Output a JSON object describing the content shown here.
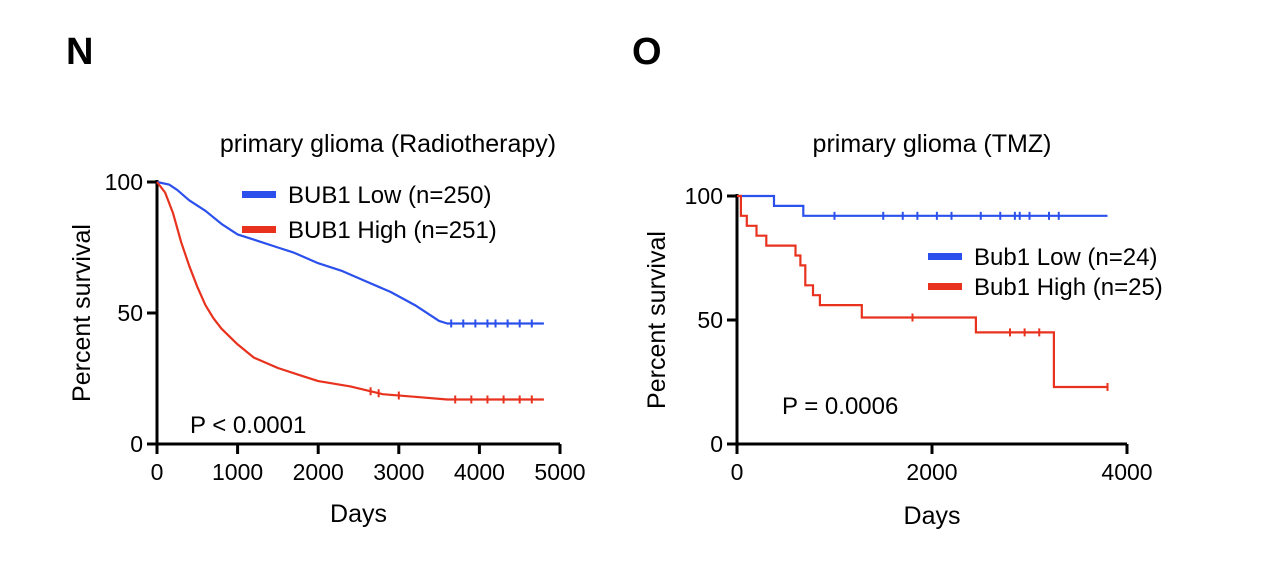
{
  "chart_data": [
    {
      "panel": "N",
      "type": "line",
      "title": "primary glioma (Radiotherapy)",
      "xlabel": "Days",
      "ylabel": "Percent survival",
      "xlim": [
        0,
        5000
      ],
      "ylim": [
        0,
        100
      ],
      "xticks": [
        0,
        1000,
        2000,
        3000,
        4000,
        5000
      ],
      "yticks": [
        0,
        50,
        100
      ],
      "annotation": "P < 0.0001",
      "legend_position": "top-right",
      "series": [
        {
          "name": "BUB1 Low (n=250)",
          "color": "#2b50ec",
          "x": [
            0,
            150,
            250,
            400,
            600,
            800,
            1000,
            1200,
            1500,
            1700,
            2000,
            2300,
            2600,
            2900,
            3200,
            3500,
            3600,
            4000,
            4500,
            4800
          ],
          "y": [
            100,
            99,
            97,
            93,
            89,
            84,
            80,
            78,
            75,
            73,
            69,
            66,
            62,
            58,
            53,
            47,
            46,
            46,
            46,
            46
          ]
        },
        {
          "name": "BUB1 High (n=251)",
          "color": "#e8321e",
          "x": [
            0,
            100,
            200,
            300,
            400,
            500,
            600,
            700,
            800,
            1000,
            1200,
            1500,
            1800,
            2000,
            2400,
            2800,
            3200,
            3600,
            4000,
            4800
          ],
          "y": [
            100,
            96,
            88,
            77,
            68,
            60,
            53,
            48,
            44,
            38,
            33,
            29,
            26,
            24,
            22,
            19,
            18,
            17,
            17,
            17
          ]
        }
      ],
      "censor_marks": [
        {
          "series": 0,
          "x": [
            3650,
            3800,
            3950,
            4100,
            4200,
            4350,
            4500,
            4650
          ]
        },
        {
          "series": 1,
          "x": [
            2650,
            2750,
            3000,
            3700,
            3900,
            4100,
            4300,
            4500,
            4650
          ]
        }
      ]
    },
    {
      "panel": "O",
      "type": "line",
      "title": "primary glioma (TMZ)",
      "xlabel": "Days",
      "ylabel": "Percent survival",
      "xlim": [
        0,
        4000
      ],
      "ylim": [
        0,
        100
      ],
      "xticks": [
        0,
        2000,
        4000
      ],
      "yticks": [
        0,
        50,
        100
      ],
      "annotation": "P = 0.0006",
      "legend_position": "right",
      "series": [
        {
          "name": "Bub1 Low (n=24)",
          "color": "#2b50ec",
          "x": [
            0,
            380,
            380,
            680,
            680,
            3800
          ],
          "y": [
            100,
            100,
            96,
            96,
            92,
            92
          ]
        },
        {
          "name": "Bub1 High (n=25)",
          "color": "#e8321e",
          "x": [
            0,
            40,
            40,
            100,
            100,
            200,
            200,
            300,
            300,
            600,
            600,
            650,
            650,
            700,
            700,
            780,
            780,
            850,
            850,
            1000,
            1000,
            1280,
            1280,
            2450,
            2450,
            3250,
            3250,
            3800
          ],
          "y": [
            100,
            100,
            92,
            92,
            88,
            88,
            84,
            84,
            80,
            80,
            76,
            76,
            72,
            72,
            64,
            64,
            60,
            60,
            56,
            56,
            56,
            56,
            51,
            51,
            45,
            45,
            23,
            23
          ]
        }
      ],
      "censor_marks": [
        {
          "series": 0,
          "x": [
            1000,
            1500,
            1700,
            1850,
            2050,
            2200,
            2500,
            2700,
            2850,
            2900,
            3000,
            3200,
            3300
          ]
        },
        {
          "series": 1,
          "x": [
            1800,
            2800,
            2950,
            3100,
            3800
          ]
        }
      ]
    }
  ]
}
